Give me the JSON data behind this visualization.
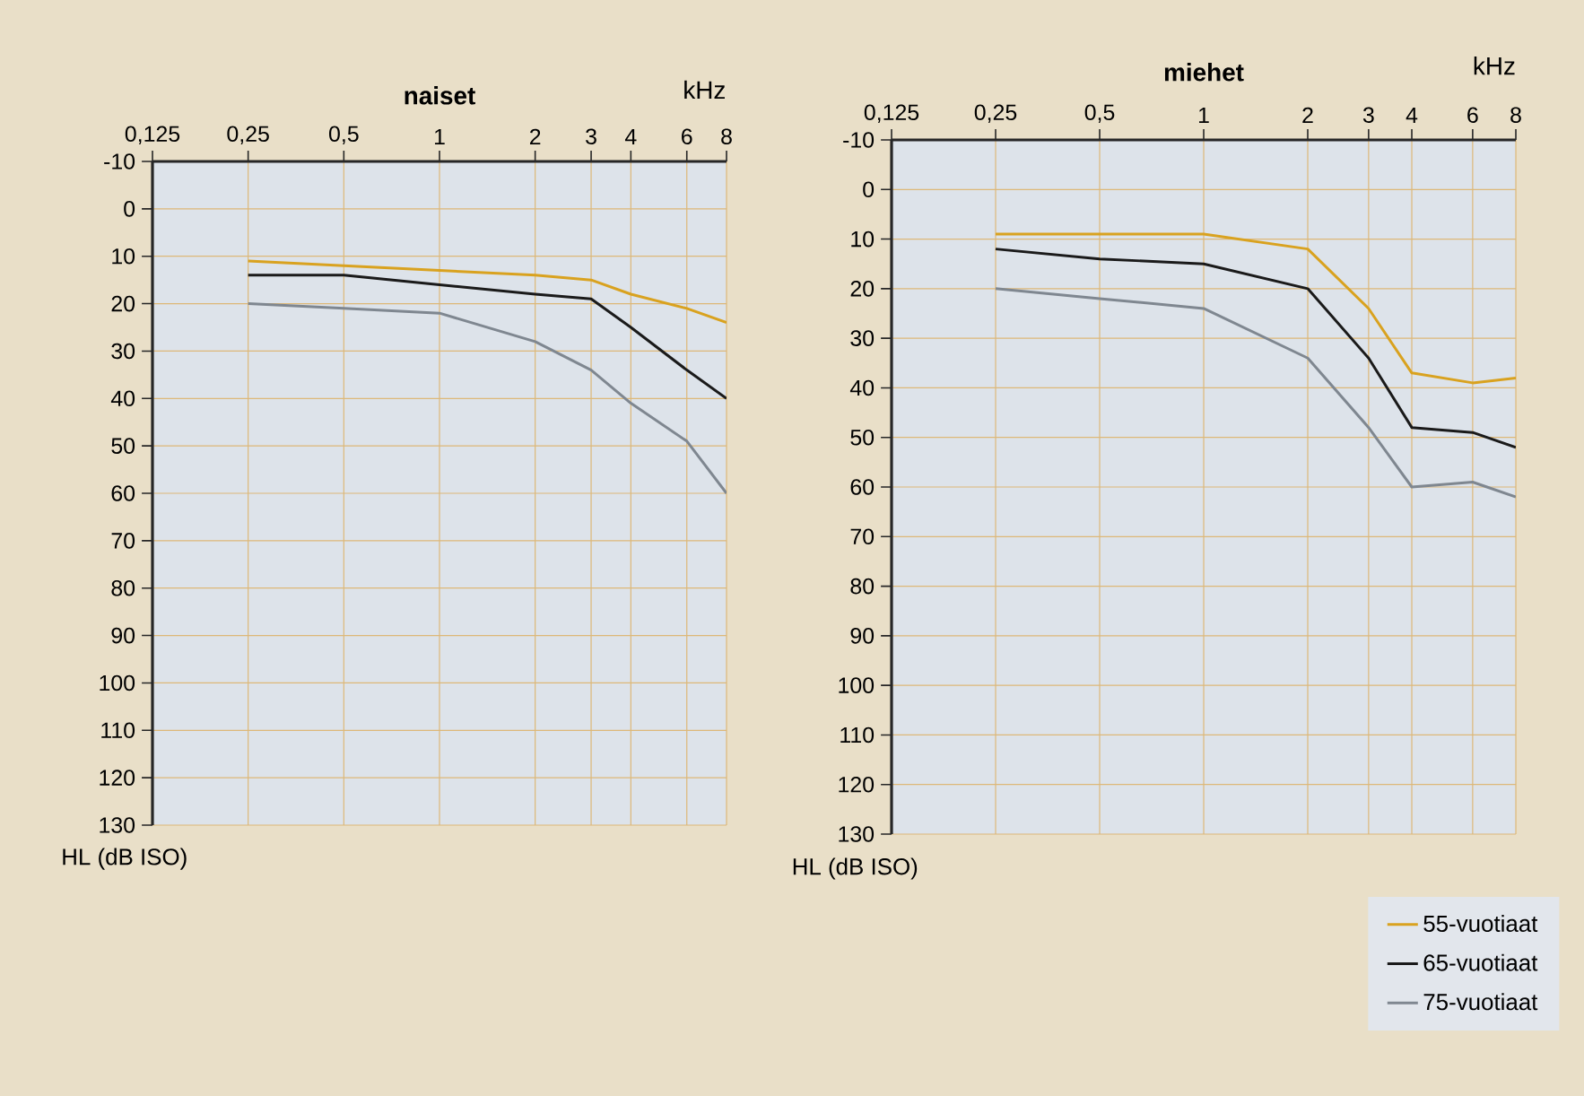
{
  "chart_data": [
    {
      "type": "line",
      "title": "naiset",
      "xlabel": "kHz",
      "ylabel": "HL (dB ISO)",
      "log": "x",
      "grid": true,
      "line_style": "solid",
      "xlim": [
        0.125,
        8
      ],
      "ylim": [
        130,
        -10
      ],
      "xticks": [
        {
          "value": 0.125,
          "label": "0,125"
        },
        {
          "value": 0.25,
          "label": "0,25"
        },
        {
          "value": 0.5,
          "label": "0,5"
        },
        1,
        2,
        3,
        4,
        6,
        8
      ],
      "yticks": [
        -10,
        0,
        10,
        20,
        30,
        40,
        50,
        60,
        70,
        80,
        90,
        100,
        110,
        120,
        130
      ],
      "x": [
        0.25,
        0.5,
        1,
        2,
        3,
        4,
        6,
        8
      ],
      "series": [
        {
          "color": "#d9a21f",
          "values": [
            11,
            12,
            13,
            14,
            15,
            18,
            21,
            24
          ]
        },
        {
          "color": "#1a1a1a",
          "values": [
            14,
            14,
            16,
            18,
            19,
            25,
            34,
            40
          ]
        },
        {
          "color": "#7f8790",
          "values": [
            20,
            21,
            22,
            28,
            34,
            41,
            49,
            60
          ]
        }
      ]
    },
    {
      "type": "line",
      "title": "miehet",
      "xlabel": "kHz",
      "ylabel": "HL (dB ISO)",
      "log": "x",
      "grid": true,
      "line_style": "solid",
      "legend": "bottom right",
      "xlim": [
        0.125,
        8
      ],
      "ylim": [
        130,
        -10
      ],
      "xticks": [
        {
          "value": 0.125,
          "label": "0,125"
        },
        {
          "value": 0.25,
          "label": "0,25"
        },
        {
          "value": 0.5,
          "label": "0,5"
        },
        1,
        2,
        3,
        4,
        6,
        8
      ],
      "yticks": [
        -10,
        0,
        10,
        20,
        30,
        40,
        50,
        60,
        70,
        80,
        90,
        100,
        110,
        120,
        130
      ],
      "x": [
        0.25,
        0.5,
        1,
        2,
        3,
        4,
        6,
        8
      ],
      "series": [
        {
          "name": "55-vuotiaat",
          "color": "#d9a21f",
          "values": [
            9,
            9,
            9,
            12,
            24,
            37,
            39,
            38
          ]
        },
        {
          "name": "65-vuotiaat",
          "color": "#1a1a1a",
          "values": [
            12,
            14,
            15,
            20,
            34,
            48,
            49,
            52
          ]
        },
        {
          "name": "75-vuotiaat",
          "color": "#7f8790",
          "values": [
            20,
            22,
            24,
            34,
            48,
            60,
            59,
            62
          ]
        }
      ]
    }
  ]
}
